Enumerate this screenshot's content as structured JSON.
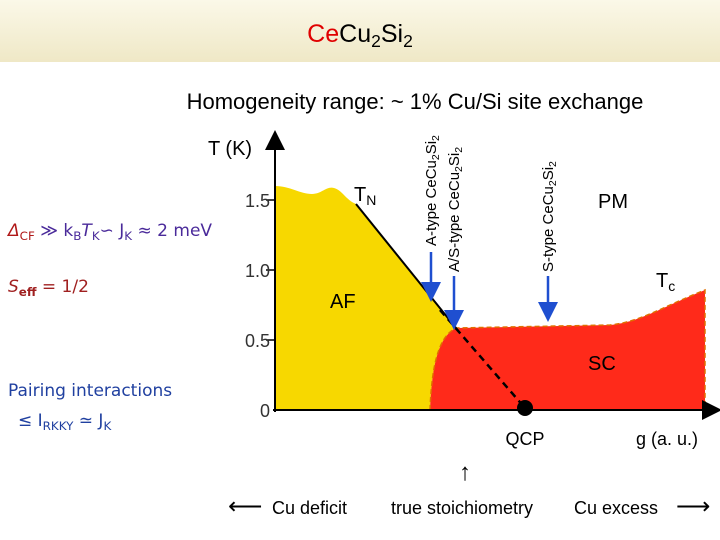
{
  "title": {
    "parts": [
      "Ce",
      "Cu",
      "2",
      "Si",
      "2"
    ]
  },
  "subtitle": "Homogeneity range: ~ 1% Cu/Si site exchange",
  "diagram": {
    "y_axis": {
      "label": "T (K)",
      "ticks": [
        "1.5",
        "1.0",
        "0.5",
        "0"
      ]
    },
    "x_axis": {
      "label": "g (a. u.)"
    },
    "phases": [
      "AF",
      "SC",
      "PM"
    ],
    "t_n": [
      "T",
      "N"
    ],
    "t_c": [
      "T",
      "c"
    ],
    "qcp": "QCP",
    "markers": [
      {
        "parts": [
          "A-type CeCu",
          "2",
          "Si",
          "2"
        ]
      },
      {
        "parts": [
          "A/S-type CeCu",
          "2",
          "Si",
          "2"
        ]
      },
      {
        "parts": [
          "S-type CeCu",
          "2",
          "Si",
          "2"
        ]
      }
    ]
  },
  "notes": [
    {
      "parts": [
        "Δ",
        "CF",
        " ≫ k",
        "B",
        "T",
        "K",
        "∽ J",
        "K",
        " ≈ 2 meV"
      ]
    },
    {
      "parts": [
        "S",
        "eff",
        " = 1/2"
      ]
    },
    {
      "parts": [
        "Pairing interactions"
      ]
    },
    {
      "parts": [
        "≤ I",
        "RKKY",
        " ≃ J",
        "K"
      ]
    }
  ],
  "bottom": {
    "left_arrow": "⟵",
    "left": "Cu deficit",
    "up_arrow": "↑",
    "center": "true stoichiometry",
    "right": "Cu excess",
    "right_arrow": "⟶"
  }
}
